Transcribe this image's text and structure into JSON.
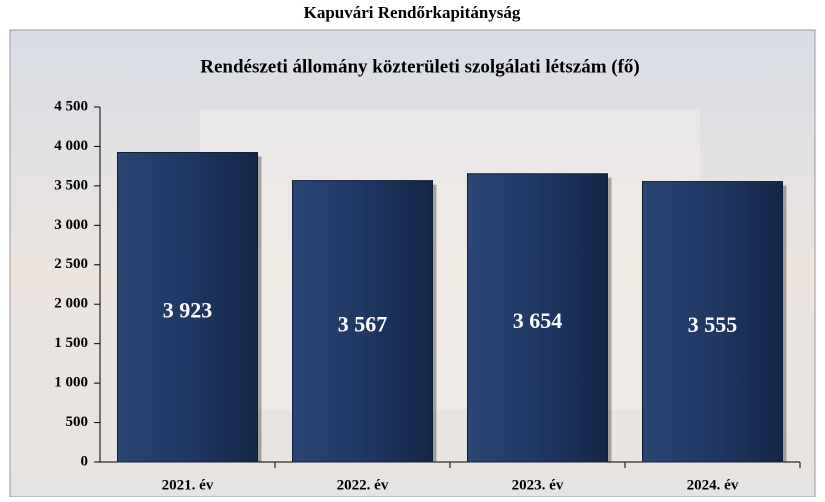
{
  "chart_data": {
    "type": "bar",
    "title": "Kapuvári Rendőrkapitányság",
    "subtitle": "Rendészeti állomány közterületi szolgálati létszám (fő)",
    "categories": [
      "2021. év",
      "2022. év",
      "2023. év",
      "2024. év"
    ],
    "values": [
      3923,
      3567,
      3654,
      3555
    ],
    "value_labels": [
      "3 923",
      "3 567",
      "3 654",
      "3 555"
    ],
    "color": "#1f3864",
    "ylim": [
      0,
      4500
    ],
    "yticks": [
      0,
      500,
      {
        "value": 1000,
        "label": "1 000"
      },
      {
        "value": 1500,
        "label": "1 500"
      },
      {
        "value": 2000,
        "label": "2 000"
      },
      {
        "value": 2500,
        "label": "2 500"
      },
      {
        "value": 3000,
        "label": "3 000"
      },
      {
        "value": 3500,
        "label": "3 500"
      },
      {
        "value": 4000,
        "label": "4 000"
      },
      {
        "value": 4500,
        "label": "4 500"
      }
    ]
  }
}
